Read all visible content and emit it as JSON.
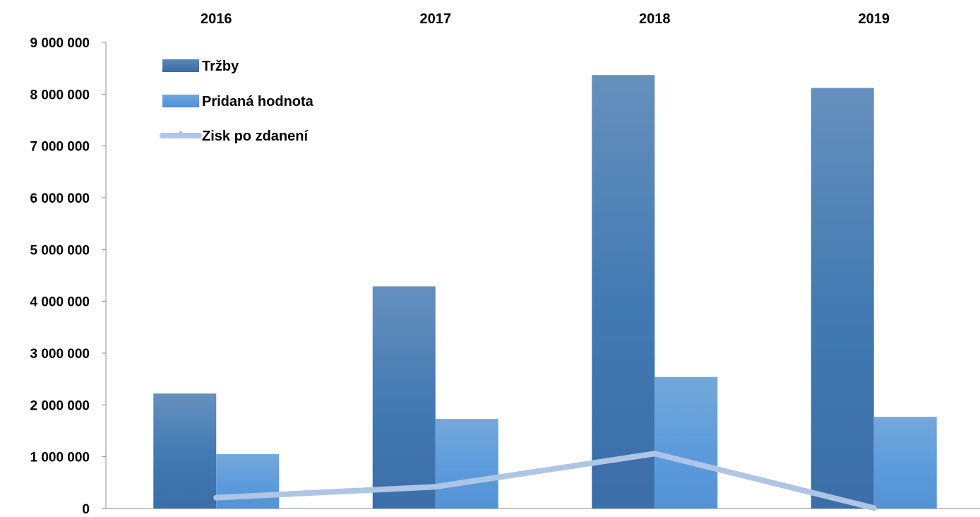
{
  "chart_data": {
    "type": "bar",
    "title": "",
    "xlabel": "",
    "ylabel": "",
    "categories": [
      "2016",
      "2017",
      "2018",
      "2019"
    ],
    "ylim": [
      0,
      9000000
    ],
    "yticks": [
      0,
      1000000,
      2000000,
      3000000,
      4000000,
      5000000,
      6000000,
      7000000,
      8000000,
      9000000
    ],
    "ytick_labels": [
      "0",
      "1 000 000",
      "2 000 000",
      "3 000 000",
      "4 000 000",
      "5 000 000",
      "6 000 000",
      "7 000 000",
      "8 000 000",
      "9 000 000"
    ],
    "x_axis_position": "top",
    "grid": false,
    "legend_position": "top-left",
    "series": [
      {
        "name": "Tržby",
        "type": "bar",
        "color": "#4178b0",
        "values": [
          2220000,
          4290000,
          8370000,
          8120000
        ]
      },
      {
        "name": "Pridaná hodnota",
        "type": "bar",
        "color": "#5a9ad8",
        "values": [
          1050000,
          1730000,
          2540000,
          1770000
        ]
      },
      {
        "name": "Zisk po zdanení",
        "type": "line",
        "marker": "triangle",
        "color": "#aec5e5",
        "values": [
          210000,
          420000,
          1060000,
          10000
        ]
      }
    ]
  }
}
